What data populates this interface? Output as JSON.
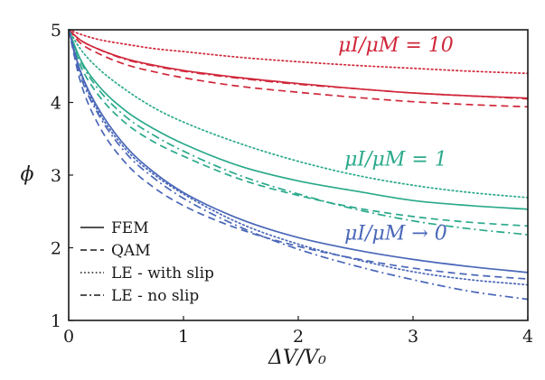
{
  "chart_data": {
    "type": "line",
    "xlabel": "ΔV/V₀",
    "ylabel": "ϕ",
    "xlim": [
      0,
      4
    ],
    "ylim": [
      1,
      5
    ],
    "xticks": [
      0,
      1,
      2,
      3,
      4
    ],
    "yticks": [
      1,
      2,
      3,
      4,
      5
    ],
    "grid": false,
    "legend": {
      "placement": "bottom-left",
      "entries": [
        {
          "label": "FEM",
          "style": "solid"
        },
        {
          "label": "QAM",
          "style": "dashed"
        },
        {
          "label": "LE - with slip",
          "style": "dotted"
        },
        {
          "label": "LE - no slip",
          "style": "dashdot"
        }
      ]
    },
    "groups": [
      {
        "annotation": "μI/μM = 10",
        "color": "#d0273a",
        "annotation_at": [
          2.85,
          4.7
        ],
        "series": [
          {
            "method": "FEM",
            "style": "solid",
            "x": [
              0,
              0.1,
              0.25,
              0.5,
              0.75,
              1,
              1.5,
              2,
              2.5,
              3,
              3.5,
              4
            ],
            "y": [
              5,
              4.86,
              4.74,
              4.6,
              4.51,
              4.44,
              4.34,
              4.26,
              4.19,
              4.13,
              4.09,
              4.06
            ]
          },
          {
            "method": "QAM",
            "style": "dashed",
            "x": [
              0,
              0.1,
              0.25,
              0.5,
              0.75,
              1,
              1.5,
              2,
              2.5,
              3,
              3.5,
              4
            ],
            "y": [
              5,
              4.82,
              4.68,
              4.52,
              4.42,
              4.34,
              4.22,
              4.14,
              4.07,
              4.01,
              3.97,
              3.94
            ]
          },
          {
            "method": "LE - with slip",
            "style": "dotted",
            "x": [
              0,
              0.1,
              0.25,
              0.5,
              0.75,
              1,
              1.5,
              2,
              2.5,
              3,
              3.5,
              4
            ],
            "y": [
              5,
              4.94,
              4.87,
              4.8,
              4.74,
              4.7,
              4.62,
              4.56,
              4.51,
              4.47,
              4.43,
              4.4
            ]
          },
          {
            "method": "LE - no slip",
            "style": "dashdot",
            "x": [
              0,
              0.1,
              0.25,
              0.5,
              0.75,
              1,
              1.5,
              2,
              2.5,
              3,
              3.5,
              4
            ],
            "y": [
              5,
              4.86,
              4.74,
              4.59,
              4.5,
              4.43,
              4.33,
              4.25,
              4.19,
              4.13,
              4.09,
              4.05
            ]
          }
        ]
      },
      {
        "annotation": "μI/μM = 1",
        "color": "#2aa98b",
        "annotation_at": [
          2.85,
          3.13
        ],
        "series": [
          {
            "method": "FEM",
            "style": "solid",
            "x": [
              0,
              0.1,
              0.25,
              0.5,
              0.75,
              1,
              1.5,
              2,
              2.5,
              3,
              3.5,
              4
            ],
            "y": [
              5,
              4.6,
              4.25,
              3.88,
              3.63,
              3.43,
              3.12,
              2.92,
              2.78,
              2.65,
              2.58,
              2.53
            ]
          },
          {
            "method": "QAM",
            "style": "dashed",
            "x": [
              0,
              0.1,
              0.25,
              0.5,
              0.75,
              1,
              1.5,
              2,
              2.5,
              3,
              3.5,
              4
            ],
            "y": [
              5,
              4.52,
              4.12,
              3.71,
              3.45,
              3.26,
              2.94,
              2.72,
              2.55,
              2.43,
              2.35,
              2.3
            ]
          },
          {
            "method": "LE - with slip",
            "style": "dotted",
            "x": [
              0,
              0.1,
              0.25,
              0.5,
              0.75,
              1,
              1.5,
              2,
              2.5,
              3,
              3.5,
              4
            ],
            "y": [
              5,
              4.74,
              4.48,
              4.17,
              3.92,
              3.73,
              3.43,
              3.19,
              3.0,
              2.86,
              2.76,
              2.69
            ]
          },
          {
            "method": "LE - no slip",
            "style": "dashdot",
            "x": [
              0,
              0.1,
              0.25,
              0.5,
              0.75,
              1,
              1.5,
              2,
              2.5,
              3,
              3.5,
              4
            ],
            "y": [
              5,
              4.58,
              4.2,
              3.8,
              3.54,
              3.33,
              2.99,
              2.74,
              2.53,
              2.37,
              2.26,
              2.18
            ]
          }
        ]
      },
      {
        "annotation": "μI/μM → 0",
        "color": "#4a67b8",
        "annotation_at": [
          2.85,
          2.11
        ],
        "series": [
          {
            "method": "FEM",
            "style": "solid",
            "x": [
              0,
              0.1,
              0.25,
              0.5,
              0.75,
              1,
              1.5,
              2,
              2.5,
              3,
              3.5,
              4
            ],
            "y": [
              5,
              4.44,
              3.94,
              3.39,
              3.03,
              2.76,
              2.39,
              2.14,
              1.97,
              1.84,
              1.74,
              1.66
            ]
          },
          {
            "method": "QAM",
            "style": "dashed",
            "x": [
              0,
              0.1,
              0.25,
              0.5,
              0.75,
              1,
              1.5,
              2,
              2.5,
              3,
              3.5,
              4
            ],
            "y": [
              5,
              4.3,
              3.72,
              3.16,
              2.82,
              2.58,
              2.25,
              2.02,
              1.85,
              1.72,
              1.63,
              1.57
            ]
          },
          {
            "method": "LE - with slip",
            "style": "dotted",
            "x": [
              0,
              0.1,
              0.25,
              0.5,
              0.75,
              1,
              1.5,
              2,
              2.5,
              3,
              3.5,
              4
            ],
            "y": [
              5,
              4.42,
              3.9,
              3.35,
              3.0,
              2.74,
              2.33,
              2.05,
              1.84,
              1.67,
              1.56,
              1.49
            ]
          },
          {
            "method": "LE - no slip",
            "style": "dashdot",
            "x": [
              0,
              0.1,
              0.25,
              0.5,
              0.75,
              1,
              1.5,
              2,
              2.5,
              3,
              3.5,
              4
            ],
            "y": [
              5,
              4.38,
              3.86,
              3.3,
              2.95,
              2.68,
              2.28,
              1.98,
              1.75,
              1.56,
              1.4,
              1.29
            ]
          }
        ]
      }
    ]
  }
}
